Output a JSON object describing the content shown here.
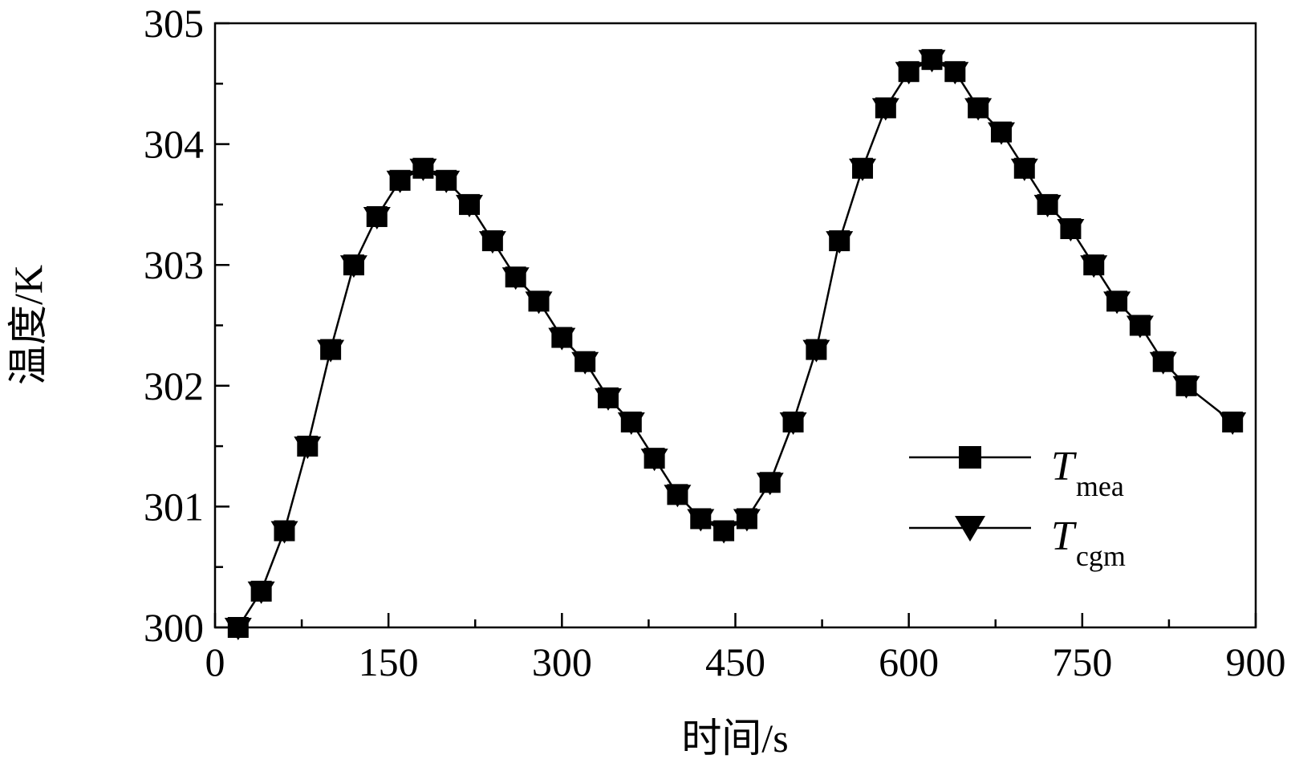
{
  "chart_data": {
    "type": "line",
    "xlabel": "时间/s",
    "ylabel": "温度/K",
    "xlim": [
      0,
      900
    ],
    "ylim": [
      300,
      305
    ],
    "xticks": [
      "0",
      "150",
      "300",
      "450",
      "600",
      "750",
      "900"
    ],
    "yticks": [
      "300",
      "301",
      "302",
      "303",
      "304",
      "305"
    ],
    "grid": false,
    "legend_position": "lower-right",
    "legend": [
      {
        "main": "T",
        "sub": "mea",
        "marker": "square"
      },
      {
        "main": "T",
        "sub": "cgm",
        "marker": "triangle-down"
      }
    ],
    "series": [
      {
        "x": [
          20,
          40,
          60,
          80,
          100,
          120,
          140,
          160,
          180,
          200,
          220,
          240,
          260,
          280,
          300,
          320,
          340,
          360,
          380,
          400,
          420,
          440,
          460,
          480,
          500,
          520,
          540,
          560,
          580,
          600,
          620,
          640,
          660,
          680,
          700,
          720,
          740,
          760,
          780,
          800,
          820,
          840,
          880
        ],
        "y": [
          300.0,
          300.3,
          300.8,
          301.5,
          302.3,
          303.0,
          303.4,
          303.7,
          303.8,
          303.7,
          303.5,
          303.2,
          302.9,
          302.7,
          302.4,
          302.2,
          301.9,
          301.7,
          301.4,
          301.1,
          300.9,
          300.8,
          300.9,
          301.2,
          301.7,
          302.3,
          303.2,
          303.8,
          304.3,
          304.6,
          304.7,
          304.6,
          304.3,
          304.1,
          303.8,
          303.5,
          303.3,
          303.0,
          302.7,
          302.5,
          302.2,
          302.0,
          301.7
        ]
      }
    ]
  }
}
